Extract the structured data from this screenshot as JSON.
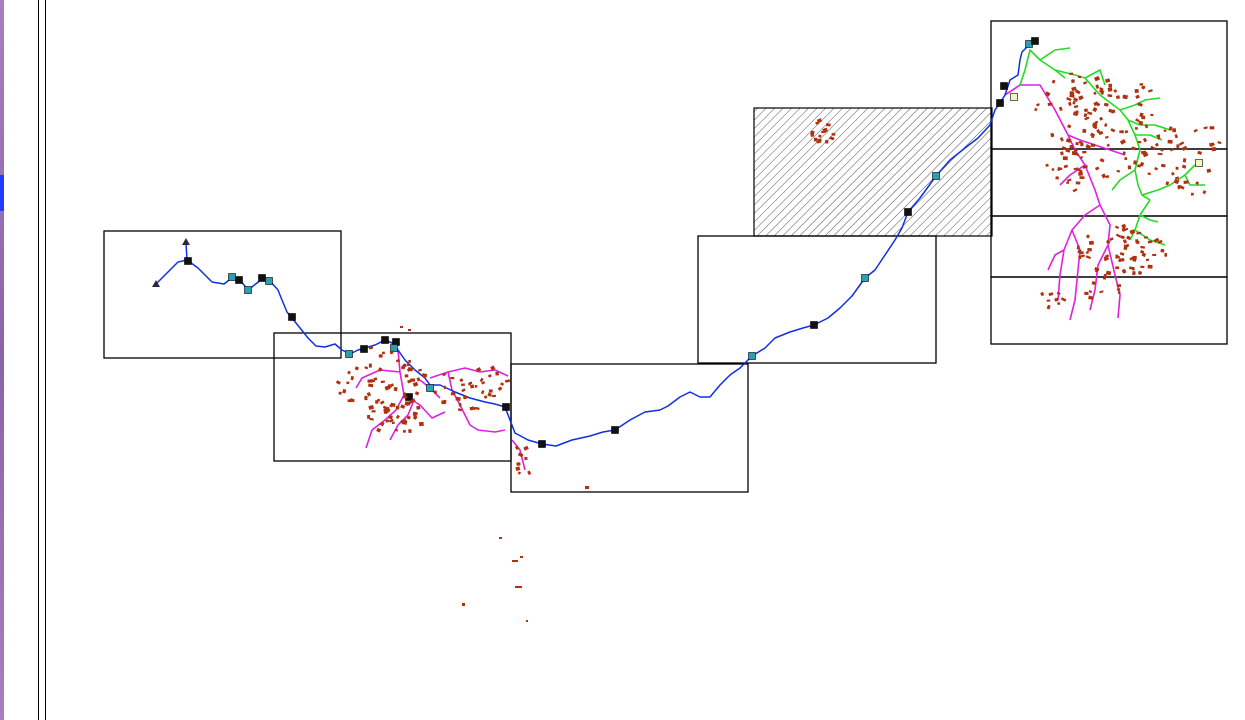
{
  "map": {
    "legend_colors": {
      "river": "#1030e0",
      "pipe_main": "#e020e0",
      "pipe_secondary": "#20e020",
      "building": "#b03010",
      "node_dark": "#111111",
      "node_teal": "#2aa0b0",
      "frame": "#000000",
      "hatch": "#555555"
    },
    "icons": [
      "triangle-marker-icon",
      "square-node-icon",
      "hatched-tile-icon"
    ]
  }
}
